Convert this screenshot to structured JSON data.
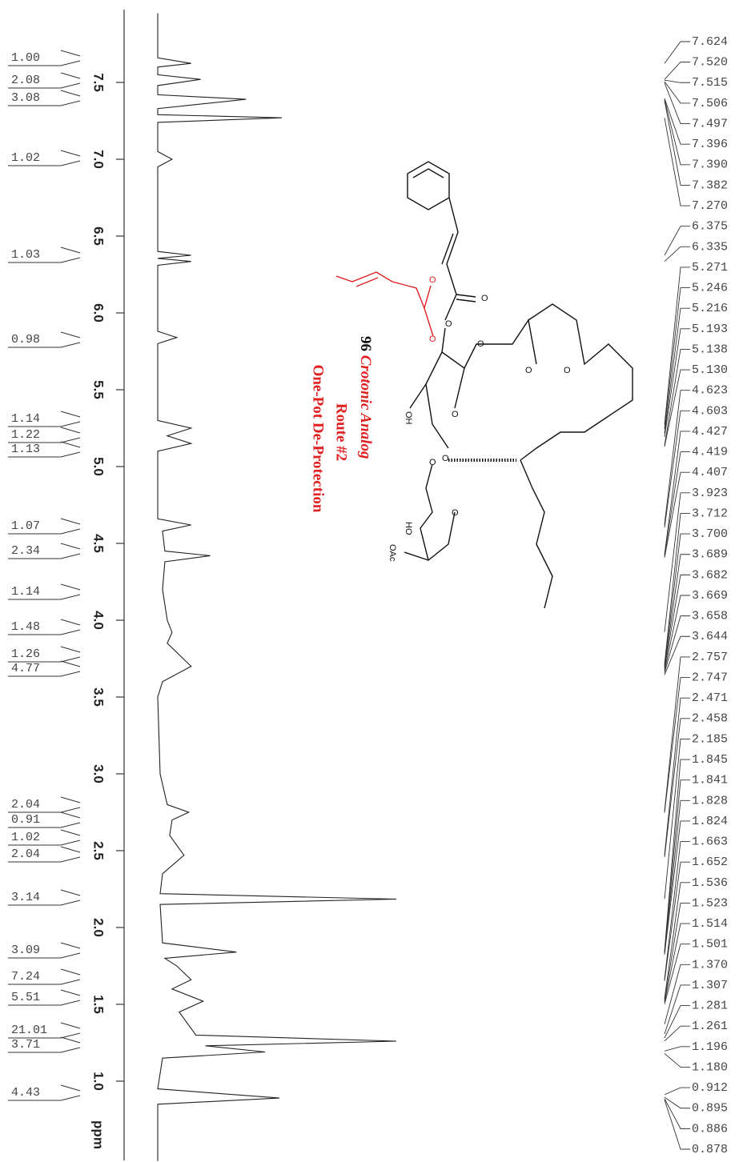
{
  "chart_data": {
    "type": "nmr",
    "x_label": "ppm",
    "xlim": [
      7.96,
      0.48
    ],
    "xticks": [
      7.5,
      {
        "value": 7,
        "label": "7.0"
      },
      6.5,
      {
        "value": 6,
        "label": "6.0"
      },
      5.5,
      {
        "value": 5,
        "label": "5.0"
      },
      4.5,
      {
        "value": 4,
        "label": "4.0"
      },
      3.5,
      {
        "value": 3,
        "label": "3.0"
      },
      2.5,
      {
        "value": 2,
        "label": "2.0"
      },
      1.5,
      {
        "value": 1,
        "label": "1.0"
      }
    ],
    "ylim": [
      0,
      100
    ],
    "color": "#222222",
    "spectrum": {
      "x": [
        7.95,
        7.66,
        7.624,
        7.6,
        7.55,
        7.52,
        7.48,
        7.42,
        7.39,
        7.33,
        7.29,
        7.27,
        7.24,
        7.05,
        7.0,
        6.95,
        6.4,
        6.375,
        6.355,
        6.335,
        6.31,
        5.88,
        5.84,
        5.8,
        5.3,
        5.25,
        5.2,
        5.15,
        5.1,
        4.66,
        4.62,
        4.58,
        4.45,
        4.42,
        4.38,
        4.2,
        4.0,
        3.92,
        3.85,
        3.7,
        3.6,
        3.5,
        3.0,
        2.8,
        2.75,
        2.7,
        2.6,
        2.47,
        2.35,
        2.22,
        2.185,
        2.15,
        1.9,
        1.84,
        1.8,
        1.75,
        1.66,
        1.6,
        1.52,
        1.45,
        1.3,
        1.26,
        1.23,
        1.19,
        1.15,
        0.95,
        0.89,
        0.85,
        0.48
      ],
      "values": [
        0,
        0,
        14,
        0,
        0,
        18,
        0,
        0,
        37,
        0,
        0,
        52,
        0,
        0,
        6,
        0,
        0,
        14,
        0,
        14,
        0,
        0,
        8,
        0,
        0,
        14,
        4,
        14,
        0,
        0,
        14,
        2,
        3,
        22,
        3,
        2,
        4,
        6,
        4,
        14,
        2,
        0,
        1,
        4,
        13,
        6,
        5,
        11,
        2,
        1,
        100,
        1,
        2,
        33,
        3,
        8,
        14,
        6,
        19,
        9,
        16,
        100,
        20,
        45,
        2,
        0,
        51,
        0,
        0
      ]
    },
    "integrals": {
      "values": [
        1,
        2.08,
        3.08,
        1.02,
        1.03,
        0.98,
        1.14,
        1.22,
        1.13,
        1.07,
        2.34,
        1.14,
        1.48,
        1.26,
        4.77,
        2.04,
        0.91,
        1.02,
        2.04,
        3.14,
        3.09,
        7.24,
        5.51,
        21.01,
        3.71,
        4.43
      ],
      "value_labels": [
        "1.00",
        "2.08",
        "3.08",
        "1.02",
        "1.03",
        "0.98",
        "1.14",
        "1.22",
        "1.13",
        "1.07",
        "2.34",
        "1.14",
        "1.48",
        "1.26",
        "4.77",
        "2.04",
        "0.91",
        "1.02",
        "2.04",
        "3.14",
        "3.09",
        "7.24",
        "5.51",
        "21.01",
        "3.71",
        "4.43"
      ]
    },
    "peaks": {
      "values": [
        7.624,
        7.52,
        7.515,
        7.506,
        7.497,
        7.396,
        7.39,
        7.382,
        7.27,
        6.375,
        6.335,
        5.271,
        5.246,
        5.216,
        5.193,
        5.138,
        5.13,
        4.623,
        4.603,
        4.427,
        4.419,
        4.407,
        3.923,
        3.712,
        3.7,
        3.689,
        3.682,
        3.669,
        3.658,
        3.644,
        2.757,
        2.747,
        2.471,
        2.458,
        2.185,
        1.845,
        1.841,
        1.828,
        1.824,
        1.663,
        1.652,
        1.536,
        1.523,
        1.514,
        1.501,
        1.37,
        1.307,
        1.281,
        1.261,
        1.196,
        1.18,
        0.912,
        0.895,
        0.886,
        0.878
      ],
      "value_labels": [
        "7.624",
        "7.520",
        "7.515",
        "7.506",
        "7.497",
        "7.396",
        "7.390",
        "7.382",
        "7.270",
        "6.375",
        "6.335",
        "5.271",
        "5.246",
        "5.216",
        "5.193",
        "5.138",
        "5.130",
        "4.623",
        "4.603",
        "4.427",
        "4.419",
        "4.407",
        "3.923",
        "3.712",
        "3.700",
        "3.689",
        "3.682",
        "3.669",
        "3.658",
        "3.644",
        "2.757",
        "2.747",
        "2.471",
        "2.458",
        "2.185",
        "1.845",
        "1.841",
        "1.828",
        "1.824",
        "1.663",
        "1.652",
        "1.536",
        "1.523",
        "1.514",
        "1.501",
        "1.370",
        "1.307",
        "1.281",
        "1.261",
        "1.196",
        "1.180",
        "0.912",
        "0.895",
        "0.886",
        "0.878"
      ]
    },
    "annotations": {
      "compound_number": "96",
      "compound_name": "Crotonic Analog",
      "route": "Route #2",
      "method": "One-Pot De-Protection"
    },
    "structure_labels": [
      "O",
      "O",
      "O",
      "O",
      "O",
      "O",
      "O",
      "O",
      "OH",
      "O",
      "O",
      "O",
      "HO",
      "OAc"
    ]
  }
}
